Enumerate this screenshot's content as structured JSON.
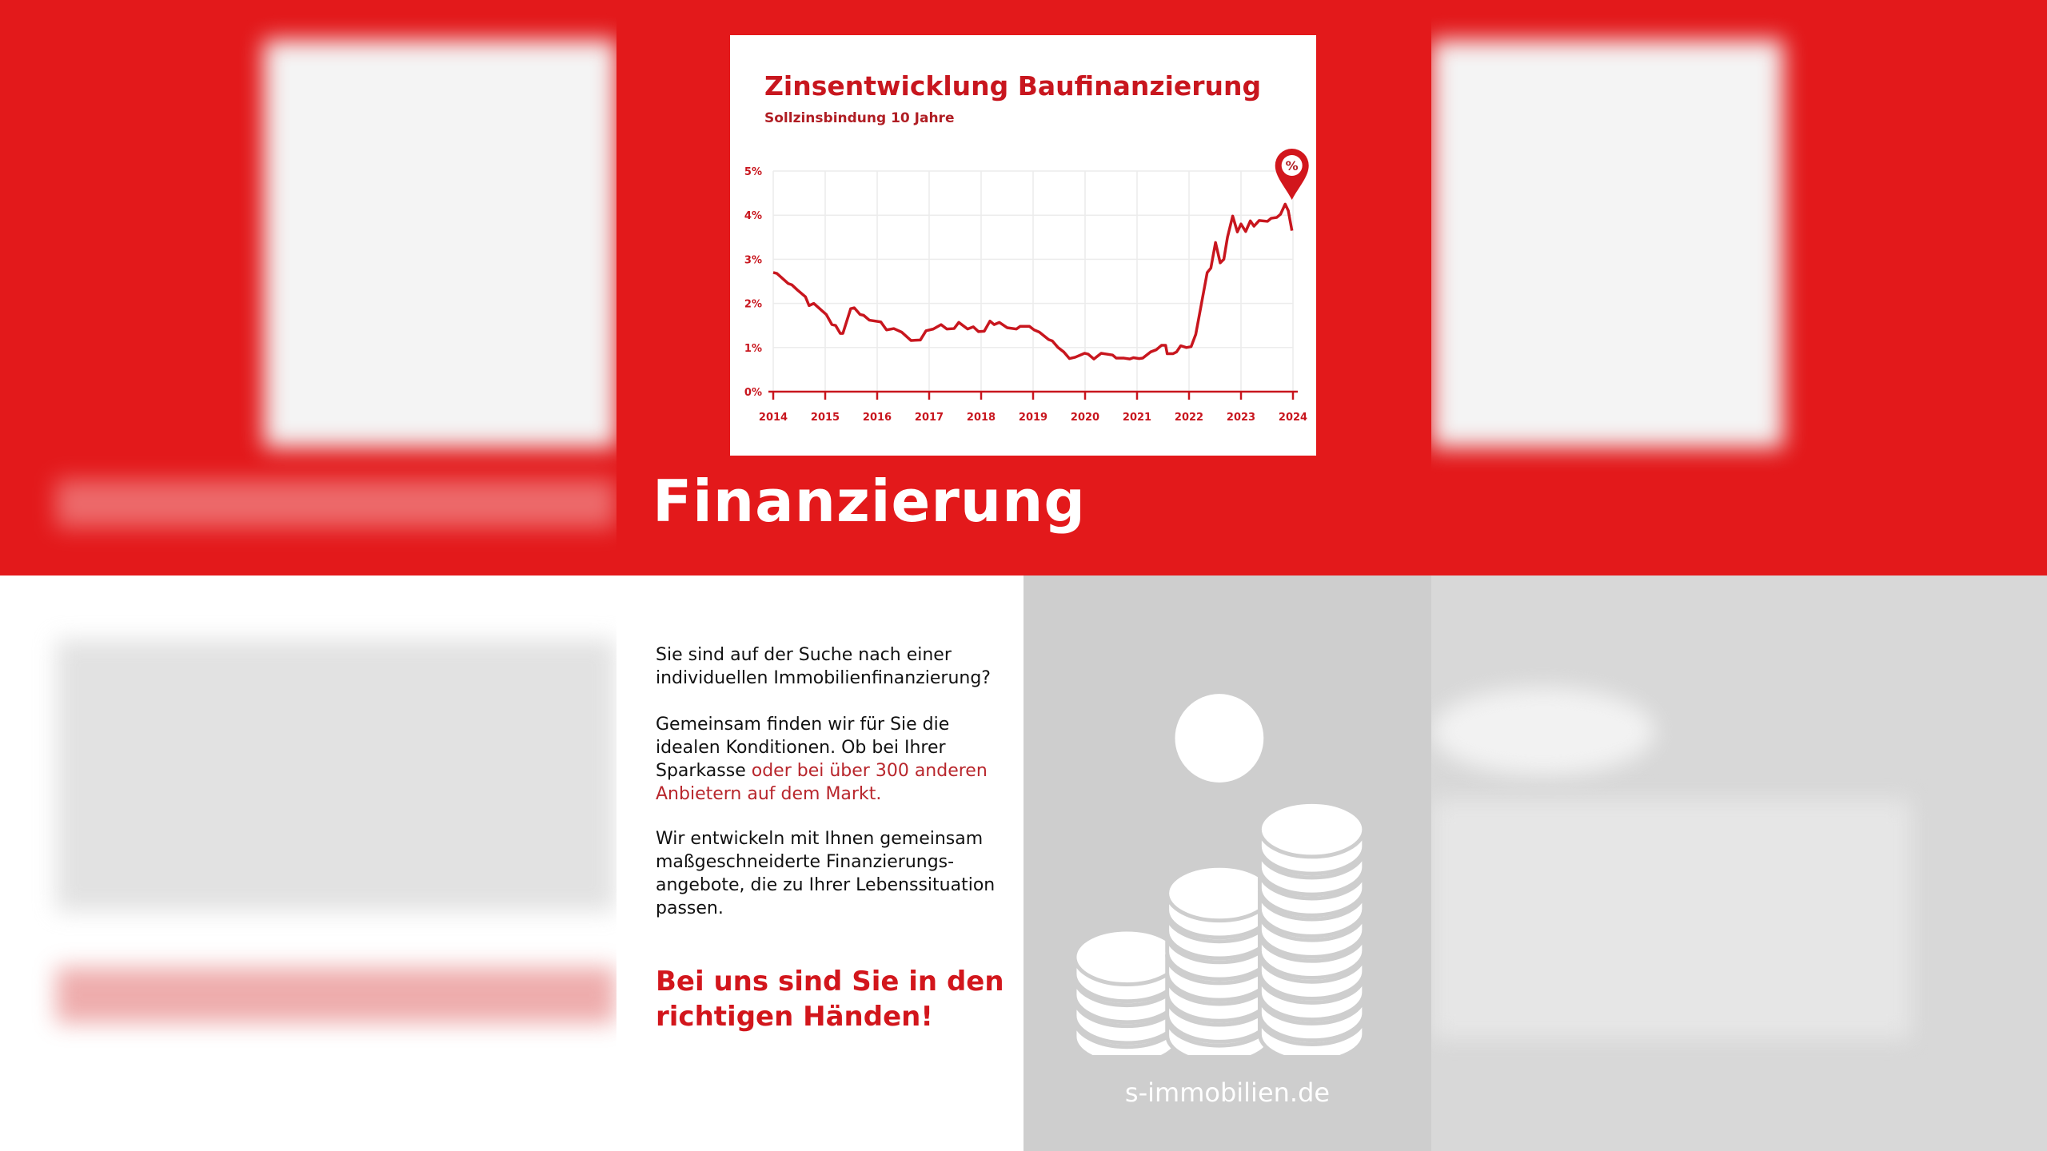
{
  "colors": {
    "brand_red": "#e3191b",
    "chart_red": "#c8161e",
    "grey_panel": "#cecece"
  },
  "heading": "Finanzierung",
  "paragraphs": {
    "p1": "Sie sind auf der Suche nach einer individuellen Immobilienfinanzierung?",
    "p2_start": "Gemeinsam finden wir für Sie die idealen Konditionen. Ob bei Ihrer Sparkasse ",
    "p2_highlight": "oder bei über 300 anderen Anbietern auf dem Markt.",
    "p3": "Wir entwickeln mit Ihnen gemeinsam maßgeschneiderte Finanzierungs-angebote, die zu Ihrer Lebenssituation passen."
  },
  "slogan": "Bei uns sind Sie in den richtigen Händen!",
  "website": "s-immobilien.de",
  "icons": {
    "pin": "percent-map-pin-icon",
    "coins": "coin-stacks-icon"
  },
  "chart_data": {
    "type": "line",
    "title": "Zinsentwicklung Baufinanzierung",
    "subtitle": "Sollzinsbindung 10 Jahre",
    "xlabel": "",
    "ylabel": "",
    "xlim": [
      2014,
      2024
    ],
    "ylim": [
      0,
      5
    ],
    "x_ticks": [
      "2014",
      "2015",
      "2016",
      "2017",
      "2018",
      "2019",
      "2020",
      "2021",
      "2022",
      "2023",
      "2024"
    ],
    "y_ticks": [
      "0%",
      "1%",
      "2%",
      "3%",
      "4%",
      "5%"
    ],
    "grid": true,
    "marker_label": "%",
    "series": [
      {
        "x": [
          2014.0,
          2014.07,
          2014.29,
          2014.36,
          2014.47,
          2014.62,
          2014.69,
          2014.78,
          2015.02,
          2015.13,
          2015.2,
          2015.29,
          2015.34,
          2015.49,
          2015.56,
          2015.67,
          2015.74,
          2015.85,
          2016.07,
          2016.18,
          2016.32,
          2016.47,
          2016.65,
          2016.83,
          2016.94,
          2017.08,
          2017.23,
          2017.34,
          2017.48,
          2017.57,
          2017.74,
          2017.85,
          2017.95,
          2018.06,
          2018.17,
          2018.25,
          2018.35,
          2018.5,
          2018.68,
          2018.75,
          2018.93,
          2019.02,
          2019.12,
          2019.3,
          2019.37,
          2019.48,
          2019.59,
          2019.7,
          2019.81,
          2019.99,
          2020.06,
          2020.17,
          2020.31,
          2020.42,
          2020.53,
          2020.6,
          2020.75,
          2020.86,
          2020.93,
          2021.04,
          2021.11,
          2021.26,
          2021.37,
          2021.47,
          2021.55,
          2021.58,
          2021.69,
          2021.76,
          2021.84,
          2021.95,
          2022.04,
          2022.13,
          2022.24,
          2022.35,
          2022.42,
          2022.51,
          2022.6,
          2022.67,
          2022.74,
          2022.84,
          2022.93,
          2023.0,
          2023.09,
          2023.18,
          2023.25,
          2023.35,
          2023.51,
          2023.58,
          2023.69,
          2023.76,
          2023.85,
          2023.91,
          2023.98
        ],
        "y": [
          2.7,
          2.68,
          2.45,
          2.42,
          2.3,
          2.15,
          1.95,
          2.0,
          1.75,
          1.52,
          1.5,
          1.32,
          1.32,
          1.88,
          1.9,
          1.75,
          1.73,
          1.62,
          1.58,
          1.4,
          1.43,
          1.35,
          1.16,
          1.17,
          1.38,
          1.42,
          1.52,
          1.42,
          1.43,
          1.57,
          1.42,
          1.47,
          1.36,
          1.37,
          1.6,
          1.52,
          1.57,
          1.45,
          1.42,
          1.48,
          1.48,
          1.4,
          1.35,
          1.18,
          1.15,
          1.0,
          0.9,
          0.75,
          0.78,
          0.87,
          0.85,
          0.74,
          0.87,
          0.85,
          0.83,
          0.76,
          0.76,
          0.74,
          0.77,
          0.75,
          0.76,
          0.9,
          0.95,
          1.05,
          1.05,
          0.86,
          0.86,
          0.9,
          1.04,
          1.0,
          1.02,
          1.3,
          2.0,
          2.7,
          2.8,
          3.38,
          2.92,
          3.0,
          3.5,
          3.98,
          3.62,
          3.8,
          3.63,
          3.87,
          3.75,
          3.88,
          3.86,
          3.93,
          3.95,
          4.02,
          4.25,
          4.1,
          3.65
        ]
      }
    ]
  }
}
